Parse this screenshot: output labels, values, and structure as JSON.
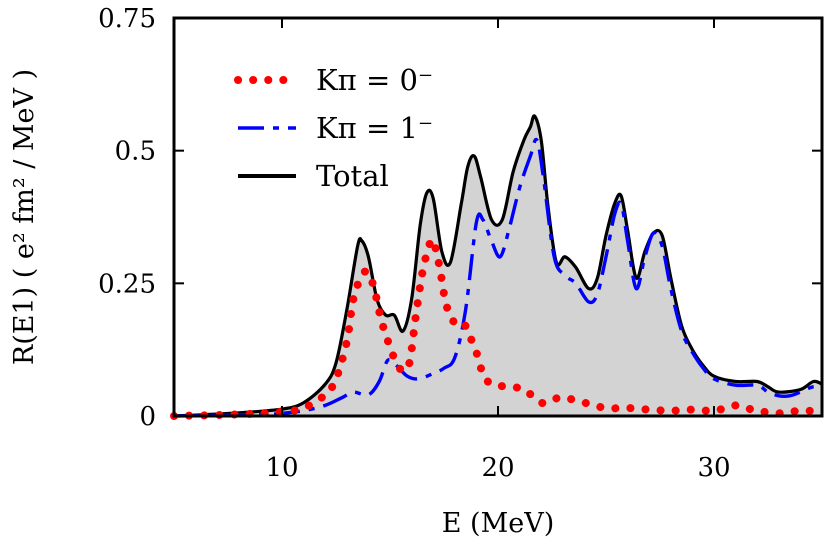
{
  "chart_data": {
    "type": "line",
    "title": "",
    "xlabel": "E (MeV)",
    "ylabel": "R(E1) ( e² fm² / MeV )",
    "xlim": [
      5,
      35
    ],
    "ylim": [
      0,
      0.75
    ],
    "x_ticks": [
      10,
      20,
      30
    ],
    "y_ticks": [
      0,
      0.25,
      0.5,
      0.75
    ],
    "x_tick_labels": [
      "10",
      "20",
      "30"
    ],
    "y_tick_labels": [
      "0",
      "0.25",
      "0.5",
      "0.75"
    ],
    "grid": false,
    "legend_position": "top-left",
    "series": [
      {
        "name": "Kπ = 0⁻",
        "label": "K^π = 0^−",
        "color": "#ff0000",
        "style": "dotted",
        "points": [
          [
            5,
            0
          ],
          [
            8,
            0.003
          ],
          [
            10,
            0.008
          ],
          [
            11,
            0.015
          ],
          [
            12,
            0.04
          ],
          [
            12.5,
            0.07
          ],
          [
            13,
            0.14
          ],
          [
            13.3,
            0.22
          ],
          [
            13.7,
            0.265
          ],
          [
            14,
            0.27
          ],
          [
            14.3,
            0.235
          ],
          [
            14.6,
            0.18
          ],
          [
            15,
            0.13
          ],
          [
            15.3,
            0.1
          ],
          [
            15.6,
            0.085
          ],
          [
            15.9,
            0.1
          ],
          [
            16.2,
            0.19
          ],
          [
            16.5,
            0.27
          ],
          [
            16.8,
            0.32
          ],
          [
            17,
            0.33
          ],
          [
            17.3,
            0.28
          ],
          [
            17.6,
            0.21
          ],
          [
            18,
            0.175
          ],
          [
            18.4,
            0.175
          ],
          [
            18.7,
            0.15
          ],
          [
            19,
            0.12
          ],
          [
            19.3,
            0.08
          ],
          [
            19.7,
            0.06
          ],
          [
            20.5,
            0.055
          ],
          [
            21.2,
            0.05
          ],
          [
            22,
            0.025
          ],
          [
            22.5,
            0.03
          ],
          [
            23,
            0.035
          ],
          [
            24,
            0.025
          ],
          [
            25,
            0.015
          ],
          [
            26,
            0.015
          ],
          [
            27,
            0.012
          ],
          [
            28,
            0.01
          ],
          [
            29,
            0.012
          ],
          [
            30,
            0.01
          ],
          [
            31,
            0.02
          ],
          [
            31.5,
            0.015
          ],
          [
            32,
            0.01
          ],
          [
            33,
            0.005
          ],
          [
            34,
            0.01
          ],
          [
            35,
            0.008
          ]
        ]
      },
      {
        "name": "Kπ = 1⁻",
        "label": "K^π = 1^−",
        "color": "#0000ff",
        "style": "dashed",
        "points": [
          [
            5,
            0
          ],
          [
            9,
            0.003
          ],
          [
            10,
            0.005
          ],
          [
            11,
            0.01
          ],
          [
            12,
            0.02
          ],
          [
            12.8,
            0.035
          ],
          [
            13.3,
            0.045
          ],
          [
            14,
            0.04
          ],
          [
            14.5,
            0.065
          ],
          [
            14.9,
            0.105
          ],
          [
            15.3,
            0.095
          ],
          [
            15.8,
            0.075
          ],
          [
            16.3,
            0.07
          ],
          [
            17,
            0.08
          ],
          [
            17.5,
            0.09
          ],
          [
            18,
            0.11
          ],
          [
            18.5,
            0.2
          ],
          [
            19,
            0.365
          ],
          [
            19.3,
            0.37
          ],
          [
            19.7,
            0.33
          ],
          [
            20.1,
            0.3
          ],
          [
            20.5,
            0.35
          ],
          [
            21,
            0.43
          ],
          [
            21.5,
            0.49
          ],
          [
            21.8,
            0.52
          ],
          [
            22.1,
            0.45
          ],
          [
            22.6,
            0.3
          ],
          [
            23.1,
            0.265
          ],
          [
            23.6,
            0.25
          ],
          [
            24.2,
            0.215
          ],
          [
            24.6,
            0.23
          ],
          [
            25,
            0.3
          ],
          [
            25.4,
            0.38
          ],
          [
            25.7,
            0.4
          ],
          [
            26,
            0.33
          ],
          [
            26.4,
            0.24
          ],
          [
            26.8,
            0.3
          ],
          [
            27.2,
            0.345
          ],
          [
            27.6,
            0.32
          ],
          [
            28,
            0.24
          ],
          [
            28.5,
            0.16
          ],
          [
            29,
            0.12
          ],
          [
            29.5,
            0.09
          ],
          [
            30,
            0.07
          ],
          [
            31,
            0.058
          ],
          [
            32,
            0.058
          ],
          [
            32.5,
            0.045
          ],
          [
            33,
            0.038
          ],
          [
            33.5,
            0.038
          ],
          [
            34,
            0.045
          ],
          [
            34.6,
            0.055
          ],
          [
            35,
            0.05
          ]
        ]
      },
      {
        "name": "Total",
        "label": "Total",
        "color": "#000000",
        "style": "solid",
        "fill": "#d3d3d3",
        "points": [
          [
            5,
            0
          ],
          [
            8,
            0.006
          ],
          [
            10,
            0.013
          ],
          [
            11,
            0.025
          ],
          [
            12,
            0.06
          ],
          [
            12.5,
            0.1
          ],
          [
            13,
            0.2
          ],
          [
            13.5,
            0.32
          ],
          [
            13.7,
            0.33
          ],
          [
            14,
            0.3
          ],
          [
            14.4,
            0.22
          ],
          [
            14.8,
            0.19
          ],
          [
            15.2,
            0.19
          ],
          [
            15.6,
            0.16
          ],
          [
            16,
            0.22
          ],
          [
            16.4,
            0.36
          ],
          [
            16.7,
            0.42
          ],
          [
            17,
            0.41
          ],
          [
            17.4,
            0.31
          ],
          [
            17.8,
            0.29
          ],
          [
            18.3,
            0.4
          ],
          [
            18.6,
            0.47
          ],
          [
            18.9,
            0.49
          ],
          [
            19.2,
            0.45
          ],
          [
            19.7,
            0.37
          ],
          [
            20.2,
            0.37
          ],
          [
            20.7,
            0.46
          ],
          [
            21.2,
            0.52
          ],
          [
            21.5,
            0.545
          ],
          [
            21.7,
            0.565
          ],
          [
            22,
            0.52
          ],
          [
            22.3,
            0.4
          ],
          [
            22.7,
            0.29
          ],
          [
            23.1,
            0.3
          ],
          [
            23.6,
            0.28
          ],
          [
            24.2,
            0.24
          ],
          [
            24.6,
            0.26
          ],
          [
            25,
            0.34
          ],
          [
            25.4,
            0.4
          ],
          [
            25.7,
            0.415
          ],
          [
            26,
            0.35
          ],
          [
            26.4,
            0.26
          ],
          [
            26.8,
            0.31
          ],
          [
            27.2,
            0.345
          ],
          [
            27.6,
            0.34
          ],
          [
            28,
            0.26
          ],
          [
            28.5,
            0.17
          ],
          [
            29,
            0.125
          ],
          [
            29.5,
            0.095
          ],
          [
            30,
            0.075
          ],
          [
            31,
            0.065
          ],
          [
            32,
            0.065
          ],
          [
            32.5,
            0.055
          ],
          [
            33,
            0.045
          ],
          [
            34,
            0.05
          ],
          [
            34.6,
            0.065
          ],
          [
            35,
            0.06
          ]
        ]
      }
    ]
  }
}
